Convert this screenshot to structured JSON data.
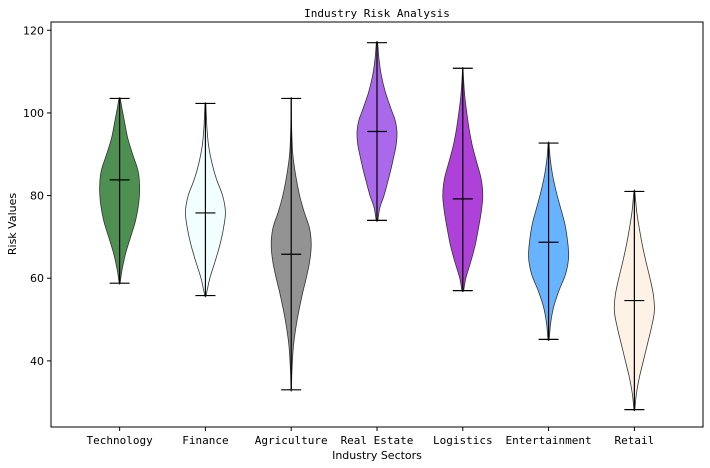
{
  "chart_data": {
    "type": "violin",
    "title": "Industry Risk Analysis",
    "xlabel": "Industry Sectors",
    "ylabel": "Risk Values",
    "ylim": [
      24,
      122
    ],
    "yticks": [
      40,
      60,
      80,
      100,
      120
    ],
    "grid": false,
    "categories": [
      "Technology",
      "Finance",
      "Agriculture",
      "Real Estate",
      "Logistics",
      "Entertainment",
      "Retail"
    ],
    "series": [
      {
        "category": "Technology",
        "color": "#2e7d32",
        "min": 58.8,
        "max": 103.5,
        "mean": 83.8,
        "density": [
          [
            58.8,
            0.02
          ],
          [
            62,
            0.12
          ],
          [
            66,
            0.3
          ],
          [
            70,
            0.55
          ],
          [
            74,
            0.8
          ],
          [
            78,
            0.95
          ],
          [
            82,
            1.0
          ],
          [
            86,
            0.92
          ],
          [
            90,
            0.65
          ],
          [
            94,
            0.4
          ],
          [
            98,
            0.24
          ],
          [
            101,
            0.12
          ],
          [
            103.5,
            0.03
          ]
        ]
      },
      {
        "category": "Finance",
        "color": "#f0ffff",
        "min": 55.8,
        "max": 102.3,
        "mean": 75.8,
        "density": [
          [
            55.8,
            0.03
          ],
          [
            60,
            0.22
          ],
          [
            64,
            0.48
          ],
          [
            68,
            0.72
          ],
          [
            72,
            0.9
          ],
          [
            76,
            1.0
          ],
          [
            80,
            0.86
          ],
          [
            84,
            0.55
          ],
          [
            88,
            0.32
          ],
          [
            92,
            0.16
          ],
          [
            96,
            0.08
          ],
          [
            100,
            0.04
          ],
          [
            102.3,
            0.02
          ]
        ]
      },
      {
        "category": "Agriculture",
        "color": "#808080",
        "min": 33.0,
        "max": 103.5,
        "mean": 65.8,
        "density": [
          [
            33,
            0.01
          ],
          [
            38,
            0.04
          ],
          [
            44,
            0.12
          ],
          [
            50,
            0.3
          ],
          [
            56,
            0.55
          ],
          [
            60,
            0.75
          ],
          [
            64,
            0.92
          ],
          [
            68,
            1.0
          ],
          [
            72,
            0.92
          ],
          [
            76,
            0.65
          ],
          [
            80,
            0.42
          ],
          [
            85,
            0.22
          ],
          [
            90,
            0.08
          ],
          [
            95,
            0.03
          ],
          [
            100,
            0.01
          ],
          [
            103.5,
            0.005
          ]
        ]
      },
      {
        "category": "Real Estate",
        "color": "#9b4de6",
        "min": 74.0,
        "max": 117.0,
        "mean": 95.5,
        "density": [
          [
            74,
            0.04
          ],
          [
            77,
            0.14
          ],
          [
            80,
            0.35
          ],
          [
            83,
            0.52
          ],
          [
            86,
            0.68
          ],
          [
            89,
            0.82
          ],
          [
            92,
            0.95
          ],
          [
            95,
            1.0
          ],
          [
            98,
            0.92
          ],
          [
            101,
            0.7
          ],
          [
            105,
            0.42
          ],
          [
            109,
            0.22
          ],
          [
            113,
            0.1
          ],
          [
            117,
            0.03
          ]
        ]
      },
      {
        "category": "Logistics",
        "color": "#a020d0",
        "min": 57.0,
        "max": 110.8,
        "mean": 79.2,
        "density": [
          [
            57,
            0.04
          ],
          [
            60,
            0.15
          ],
          [
            64,
            0.4
          ],
          [
            68,
            0.62
          ],
          [
            72,
            0.78
          ],
          [
            76,
            0.92
          ],
          [
            80,
            1.0
          ],
          [
            84,
            0.92
          ],
          [
            88,
            0.7
          ],
          [
            92,
            0.48
          ],
          [
            96,
            0.32
          ],
          [
            100,
            0.2
          ],
          [
            104,
            0.1
          ],
          [
            108,
            0.04
          ],
          [
            110.8,
            0.01
          ]
        ]
      },
      {
        "category": "Entertainment",
        "color": "#4da6ff",
        "min": 45.2,
        "max": 92.7,
        "mean": 68.7,
        "density": [
          [
            45.2,
            0.03
          ],
          [
            49,
            0.1
          ],
          [
            53,
            0.25
          ],
          [
            57,
            0.52
          ],
          [
            61,
            0.85
          ],
          [
            65,
            1.0
          ],
          [
            69,
            0.95
          ],
          [
            73,
            0.82
          ],
          [
            77,
            0.6
          ],
          [
            81,
            0.38
          ],
          [
            85,
            0.2
          ],
          [
            89,
            0.08
          ],
          [
            92.7,
            0.02
          ]
        ]
      },
      {
        "category": "Retail",
        "color": "#fdf0e0",
        "min": 28.2,
        "max": 81.0,
        "mean": 54.6,
        "density": [
          [
            28.2,
            0.02
          ],
          [
            32,
            0.1
          ],
          [
            36,
            0.25
          ],
          [
            40,
            0.45
          ],
          [
            44,
            0.65
          ],
          [
            48,
            0.85
          ],
          [
            52,
            1.0
          ],
          [
            56,
            0.95
          ],
          [
            60,
            0.78
          ],
          [
            64,
            0.58
          ],
          [
            68,
            0.4
          ],
          [
            72,
            0.25
          ],
          [
            76,
            0.12
          ],
          [
            81,
            0.02
          ]
        ]
      }
    ]
  }
}
